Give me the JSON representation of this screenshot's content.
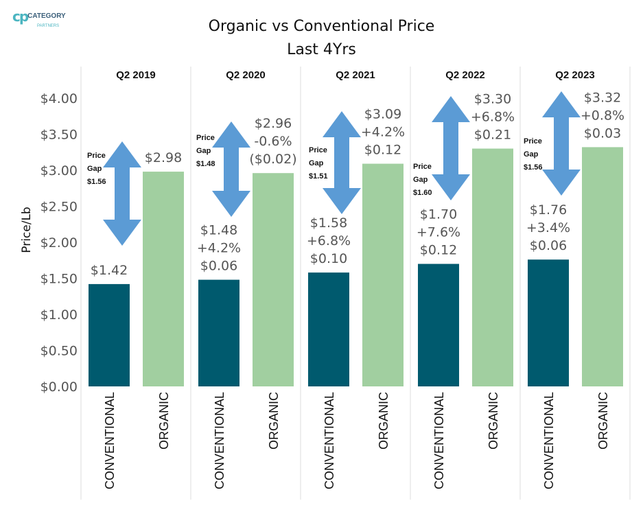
{
  "logo": {
    "mark": "cp",
    "name": "CATEGORY",
    "sub": "PARTNERS"
  },
  "chart_data": {
    "type": "bar",
    "title": "Organic vs Conventional Price",
    "subtitle": "Last 4Yrs",
    "ylabel": "Price/Lb",
    "ylim": [
      0,
      4
    ],
    "yticks": [
      "$0.00",
      "$0.50",
      "$1.00",
      "$1.50",
      "$2.00",
      "$2.50",
      "$3.00",
      "$3.50",
      "$4.00"
    ],
    "ytick_values": [
      0,
      0.5,
      1,
      1.5,
      2,
      2.5,
      3,
      3.5,
      4
    ],
    "categories": [
      "CONVENTIONAL",
      "ORGANIC"
    ],
    "colors": {
      "CONVENTIONAL": "#005a6e",
      "ORGANIC": "#a1cfa0",
      "arrow": "#5b9bd5"
    },
    "panels": [
      {
        "period": "Q2 2019",
        "conventional": 1.42,
        "organic": 2.98,
        "conv_label": [
          "$1.42"
        ],
        "org_label": [
          "$2.98"
        ],
        "gap_label": [
          "Price",
          "Gap",
          "$1.56"
        ]
      },
      {
        "period": "Q2 2020",
        "conventional": 1.48,
        "organic": 2.96,
        "conv_label": [
          "$1.48",
          "+4.2%",
          "$0.06"
        ],
        "org_label": [
          "$2.96",
          "-0.6%",
          "($0.02)"
        ],
        "gap_label": [
          "Price",
          "Gap",
          "$1.48"
        ]
      },
      {
        "period": "Q2 2021",
        "conventional": 1.58,
        "organic": 3.09,
        "conv_label": [
          "$1.58",
          "+6.8%",
          "$0.10"
        ],
        "org_label": [
          "$3.09",
          "+4.2%",
          "$0.12"
        ],
        "gap_label": [
          "Price",
          "Gap",
          "$1.51"
        ]
      },
      {
        "period": "Q2 2022",
        "conventional": 1.7,
        "organic": 3.3,
        "conv_label": [
          "$1.70",
          "+7.6%",
          "$0.12"
        ],
        "org_label": [
          "$3.30",
          "+6.8%",
          "$0.21"
        ],
        "gap_label": [
          "Price",
          "Gap",
          "$1.60"
        ]
      },
      {
        "period": "Q2 2023",
        "conventional": 1.76,
        "organic": 3.32,
        "conv_label": [
          "$1.76",
          "+3.4%",
          "$0.06"
        ],
        "org_label": [
          "$3.32",
          "+0.8%",
          "$0.03"
        ],
        "gap_label": [
          "Price",
          "Gap",
          "$1.56"
        ]
      }
    ]
  }
}
